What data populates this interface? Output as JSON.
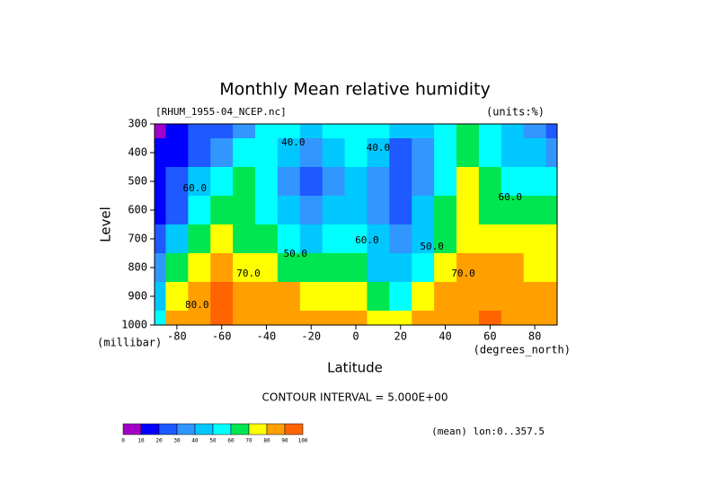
{
  "chart_data": {
    "type": "contour",
    "title": "Monthly Mean relative humidity",
    "file_label": "[RHUM_1955-04_NCEP.nc]",
    "units_label": "(units:%)",
    "y_label": "Level",
    "y_units": "(millibar)",
    "x_label": "Latitude",
    "x_units": "(degrees_north)",
    "contour_interval": "CONTOUR INTERVAL = 5.000E+00",
    "mean_label": "(mean) lon:0..357.5",
    "latitudes": [
      -90,
      -80,
      -70,
      -60,
      -50,
      -40,
      -30,
      -20,
      -10,
      0,
      10,
      20,
      30,
      40,
      50,
      60,
      70,
      80,
      90
    ],
    "pressure_levels": [
      300,
      400,
      500,
      600,
      700,
      800,
      900,
      1000
    ],
    "values": [
      [
        5,
        15,
        20,
        25,
        35,
        55,
        50,
        45,
        50,
        55,
        50,
        45,
        40,
        55,
        65,
        55,
        45,
        30,
        25
      ],
      [
        10,
        15,
        25,
        35,
        50,
        55,
        40,
        30,
        40,
        50,
        40,
        25,
        35,
        50,
        60,
        55,
        45,
        40,
        35
      ],
      [
        10,
        20,
        40,
        50,
        60,
        50,
        35,
        20,
        35,
        45,
        30,
        20,
        35,
        55,
        70,
        60,
        55,
        50,
        50
      ],
      [
        15,
        25,
        50,
        60,
        65,
        55,
        40,
        30,
        40,
        45,
        30,
        25,
        40,
        60,
        75,
        65,
        60,
        60,
        65
      ],
      [
        20,
        40,
        60,
        70,
        65,
        60,
        55,
        45,
        55,
        55,
        40,
        35,
        45,
        65,
        75,
        75,
        70,
        70,
        70
      ],
      [
        30,
        60,
        70,
        80,
        75,
        70,
        65,
        60,
        65,
        60,
        45,
        40,
        50,
        70,
        80,
        80,
        80,
        75,
        75
      ],
      [
        40,
        70,
        80,
        90,
        85,
        80,
        80,
        75,
        75,
        70,
        60,
        55,
        70,
        80,
        85,
        85,
        85,
        80,
        80
      ],
      [
        50,
        80,
        85,
        90,
        85,
        85,
        80,
        85,
        85,
        80,
        75,
        75,
        80,
        85,
        85,
        90,
        85,
        85,
        80
      ]
    ],
    "levels": [
      0,
      10,
      20,
      30,
      40,
      50,
      60,
      70,
      80,
      90,
      100
    ],
    "colors": [
      "#a000c8",
      "#0000ff",
      "#1e5aff",
      "#3296ff",
      "#00c8ff",
      "#00ffff",
      "#00e650",
      "#ffff00",
      "#ffa000",
      "#ff6400"
    ],
    "xlim": [
      -90,
      90
    ],
    "ylim": [
      1000,
      300
    ],
    "xticks": [
      -80,
      -60,
      -40,
      -20,
      0,
      20,
      40,
      60,
      80
    ],
    "yticks": [
      300,
      400,
      500,
      600,
      700,
      800,
      900,
      1000
    ],
    "annotations": [
      {
        "text": "40.0",
        "lat": -28,
        "level": 365
      },
      {
        "text": "40.0",
        "lat": 10,
        "level": 384
      },
      {
        "text": "50.0",
        "lat": -27,
        "level": 753
      },
      {
        "text": "60.0",
        "lat": 5,
        "level": 706
      },
      {
        "text": "50.0",
        "lat": 34,
        "level": 728
      },
      {
        "text": "70.0",
        "lat": 48,
        "level": 822
      },
      {
        "text": "70.0",
        "lat": -48,
        "level": 822
      },
      {
        "text": "60.0",
        "lat": -72,
        "level": 525
      },
      {
        "text": "60.0",
        "lat": 69,
        "level": 556
      },
      {
        "text": "80.0",
        "lat": -71,
        "level": 931
      }
    ]
  }
}
